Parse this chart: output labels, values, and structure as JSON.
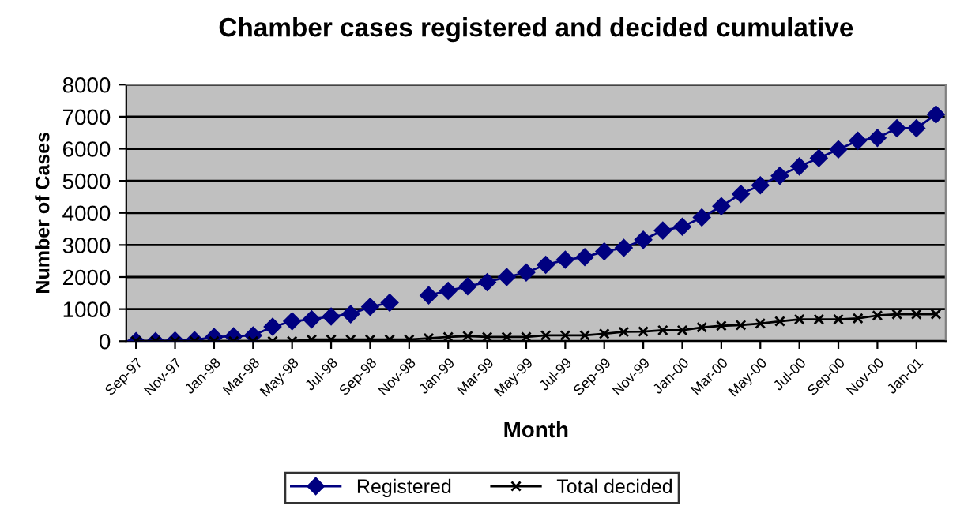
{
  "chart_data": {
    "type": "line",
    "title": "Chamber cases registered and decided cumulative",
    "xlabel": "Month",
    "ylabel": "Number of Cases",
    "categories": [
      "Sep-97",
      null,
      "Nov-97",
      null,
      "Jan-98",
      null,
      "Mar-98",
      null,
      "May-98",
      null,
      "Jul-98",
      null,
      "Sep-98",
      null,
      "Nov-98",
      null,
      "Jan-99",
      null,
      "Mar-99",
      null,
      "May-99",
      null,
      "Jul-99",
      null,
      "Sep-99",
      null,
      "Nov-99",
      null,
      "Jan-00",
      null,
      "Mar-00",
      null,
      "May-00",
      null,
      "Jul-00",
      null,
      "Sep-00",
      null,
      "Nov-00",
      null,
      "Jan-01",
      null
    ],
    "series": [
      {
        "name": "Registered",
        "color": "#000080",
        "marker": "diamond",
        "values": [
          0,
          0,
          20,
          30,
          130,
          150,
          180,
          450,
          620,
          680,
          770,
          840,
          1070,
          1200,
          null,
          1430,
          1570,
          1710,
          1840,
          2000,
          2140,
          2380,
          2540,
          2620,
          2800,
          2910,
          3160,
          3450,
          3570,
          3860,
          4210,
          4590,
          4860,
          5160,
          5450,
          5710,
          5980,
          6250,
          6340,
          6640,
          6640,
          7070
        ]
      },
      {
        "name": "Total decided",
        "color": "#000000",
        "marker": "cross",
        "values": [
          0,
          0,
          0,
          0,
          0,
          0,
          0,
          0,
          0,
          50,
          50,
          50,
          50,
          50,
          50,
          90,
          130,
          160,
          130,
          130,
          130,
          180,
          180,
          180,
          230,
          290,
          300,
          340,
          340,
          430,
          480,
          500,
          550,
          620,
          680,
          680,
          680,
          710,
          800,
          840,
          840,
          840
        ]
      }
    ],
    "ylim": [
      0,
      8000
    ],
    "yticks": [
      0,
      1000,
      2000,
      3000,
      4000,
      5000,
      6000,
      7000,
      8000
    ],
    "grid": "y",
    "legend": "bottom"
  }
}
